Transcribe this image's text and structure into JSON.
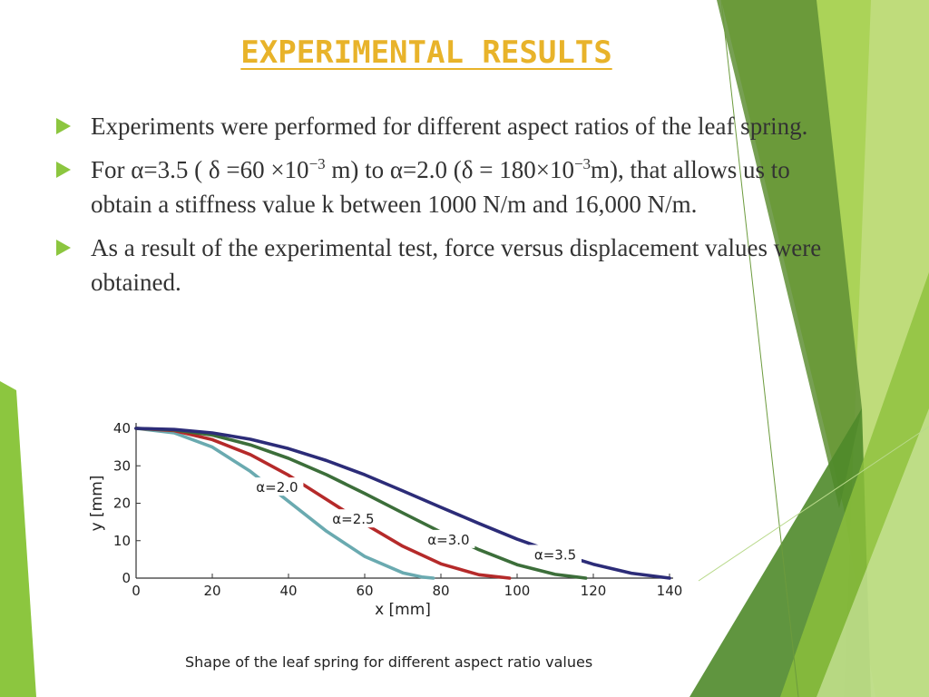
{
  "slide": {
    "title": "EXPERIMENTAL RESULTS",
    "colors": {
      "title": "#e8b32a",
      "bullet_arrow": "#8cc63f",
      "text": "#333333"
    },
    "bullets": [
      {
        "text": "Experiments were performed for different aspect ratios of the leaf spring."
      },
      {
        "p1": "For α=3.5 ( δ =60 ×10",
        "sup1": "−3",
        "p2": " m) to α=2.0 (δ = 180×10",
        "sup2": "−3",
        "p3": "m), that allows us to obtain a stiffness value k between 1000 N/m and 16,000 N/m."
      },
      {
        "text": "As a result of the experimental test, force versus displacement values were obtained."
      }
    ]
  },
  "chart_data": {
    "type": "line",
    "caption": "Shape of the leaf spring for different aspect ratio values",
    "xlabel": "x [mm]",
    "ylabel": "y [mm]",
    "xlim": [
      0,
      140
    ],
    "ylim": [
      0,
      40
    ],
    "xticks": [
      "0",
      "20",
      "40",
      "60",
      "80",
      "100",
      "120",
      "140"
    ],
    "yticks": [
      "0",
      "10",
      "20",
      "30",
      "40"
    ],
    "grid": false,
    "series": [
      {
        "name": "α=2.0",
        "color": "#6aaab0",
        "x": [
          0,
          10,
          20,
          30,
          40,
          50,
          60,
          70,
          75,
          78
        ],
        "y": [
          40,
          38.8,
          35,
          28.5,
          20.5,
          12.5,
          5.8,
          1.4,
          0.3,
          0
        ]
      },
      {
        "name": "α=2.5",
        "color": "#b52a2a",
        "x": [
          0,
          10,
          20,
          30,
          40,
          50,
          60,
          70,
          80,
          90,
          98
        ],
        "y": [
          40,
          39.4,
          37,
          33,
          27.5,
          21,
          14.5,
          8.5,
          3.8,
          0.9,
          0
        ]
      },
      {
        "name": "α=3.0",
        "color": "#3c6e3a",
        "x": [
          0,
          10,
          20,
          30,
          40,
          50,
          60,
          70,
          80,
          90,
          100,
          110,
          118
        ],
        "y": [
          40,
          39.6,
          38.2,
          35.6,
          32,
          27.6,
          22.6,
          17.4,
          12.3,
          7.6,
          3.6,
          1,
          0
        ]
      },
      {
        "name": "α=3.5",
        "color": "#2c2c78",
        "x": [
          0,
          10,
          20,
          30,
          40,
          50,
          60,
          70,
          80,
          90,
          100,
          110,
          120,
          130,
          140
        ],
        "y": [
          40,
          39.7,
          38.8,
          37.1,
          34.6,
          31.4,
          27.6,
          23.3,
          18.9,
          14.6,
          10.4,
          6.8,
          3.7,
          1.3,
          0
        ]
      }
    ],
    "annotations": [
      {
        "text": "α=2.0",
        "x": 37,
        "y": 23
      },
      {
        "text": "α=2.5",
        "x": 57,
        "y": 14.5
      },
      {
        "text": "α=3.0",
        "x": 82,
        "y": 9
      },
      {
        "text": "α=3.5",
        "x": 110,
        "y": 5
      }
    ]
  }
}
